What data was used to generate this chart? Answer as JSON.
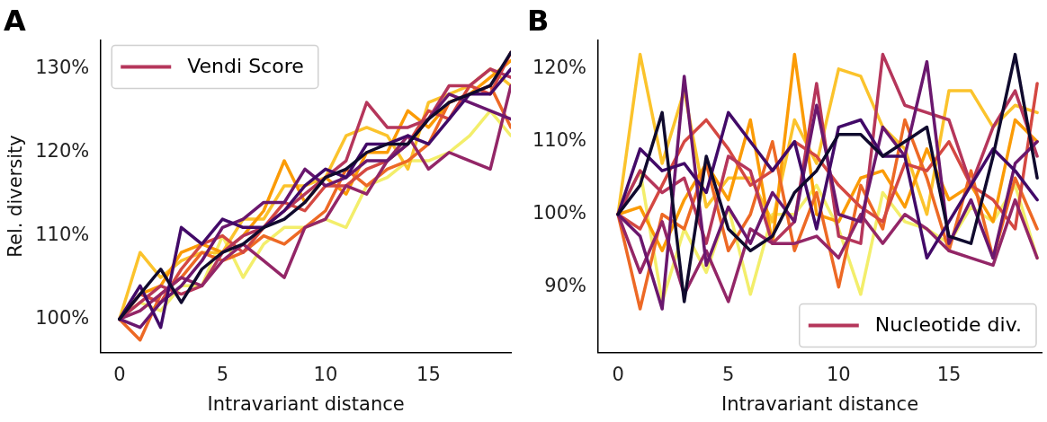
{
  "chart_data": [
    {
      "type": "line",
      "title": "A",
      "xlabel": "Intravariant distance",
      "ylabel": "Rel. diversity",
      "x": [
        0,
        1,
        2,
        3,
        4,
        5,
        6,
        7,
        8,
        9,
        10,
        11,
        12,
        13,
        14,
        15,
        16,
        17,
        18,
        19
      ],
      "xlim": [
        -0.9,
        19
      ],
      "xticks": [
        0,
        5,
        10,
        15
      ],
      "ylim": [
        96,
        133.5
      ],
      "yticks": [
        {
          "value": 100,
          "label": "100%"
        },
        {
          "value": 110,
          "label": "110%"
        },
        {
          "value": 120,
          "label": "120%"
        },
        {
          "value": 130,
          "label": "130%"
        }
      ],
      "grid": false,
      "legend": "top left",
      "marker": "none",
      "line_style": "solid",
      "series": [
        {
          "color": "#100a2e",
          "values": [
            100,
            103,
            106,
            102,
            106,
            108,
            109,
            111,
            112,
            114,
            117,
            118,
            120,
            121,
            121,
            124,
            126,
            127,
            128,
            132
          ]
        },
        {
          "color": "#420a68",
          "values": [
            100,
            104,
            99,
            111,
            109,
            112,
            111,
            111,
            113,
            116,
            118,
            117,
            121,
            121,
            122,
            121,
            124,
            127,
            127,
            130
          ]
        },
        {
          "color": "#6a176e",
          "values": [
            100,
            99,
            102,
            104,
            107,
            111,
            112,
            114,
            114,
            118,
            116,
            117,
            119,
            119,
            121,
            124,
            127,
            126,
            125,
            124
          ]
        },
        {
          "color": "#932667",
          "values": [
            100,
            101,
            103,
            105,
            104,
            107,
            109,
            107,
            105,
            111,
            112,
            116,
            115,
            119,
            122,
            118,
            120,
            119,
            118,
            128
          ]
        },
        {
          "name": "Vendi Score",
          "color": "#b5365b",
          "values": [
            100,
            102,
            104,
            103,
            104,
            108,
            110,
            111,
            113,
            115,
            117,
            119,
            126,
            123,
            123,
            124,
            128,
            128,
            130,
            129
          ]
        },
        {
          "color": "#d44842",
          "values": [
            100,
            103,
            102,
            106,
            109,
            110,
            108,
            111,
            114,
            113,
            116,
            116,
            118,
            119,
            121,
            125,
            124,
            128,
            127,
            132
          ]
        },
        {
          "color": "#ed6925",
          "values": [
            100,
            97.5,
            103,
            105,
            108,
            107,
            108,
            110,
            109,
            111,
            113,
            118,
            116,
            118,
            119,
            121,
            126,
            127,
            128,
            123
          ]
        },
        {
          "color": "#fb9b06",
          "values": [
            100,
            103,
            104,
            108,
            109,
            108,
            110,
            113,
            119,
            114,
            117,
            115,
            120,
            120,
            125,
            123,
            126,
            127,
            129,
            131
          ]
        },
        {
          "color": "#fbc32c",
          "values": [
            100,
            108,
            105,
            107,
            108,
            108,
            112,
            112,
            116,
            116,
            117,
            122,
            123,
            122,
            118,
            126,
            127,
            128,
            130,
            128
          ]
        },
        {
          "color": "#f3ee6b",
          "values": [
            100,
            102,
            101,
            104,
            104,
            110,
            105,
            109,
            111,
            111,
            112,
            111,
            116,
            117,
            119,
            119,
            120,
            122,
            125,
            122
          ]
        }
      ]
    },
    {
      "type": "line",
      "title": "B",
      "xlabel": "Intravariant distance",
      "x": [
        0,
        1,
        2,
        3,
        4,
        5,
        6,
        7,
        8,
        9,
        10,
        11,
        12,
        13,
        14,
        15,
        16,
        17,
        18,
        19
      ],
      "xlim": [
        -0.9,
        19.2
      ],
      "xticks": [
        0,
        5,
        10,
        15
      ],
      "ylim": [
        81,
        124
      ],
      "yticks": [
        {
          "value": 90,
          "label": "90%"
        },
        {
          "value": 100,
          "label": "100%"
        },
        {
          "value": 110,
          "label": "110%"
        },
        {
          "value": 120,
          "label": "120%"
        }
      ],
      "grid": false,
      "legend": "bottom right",
      "marker": "none",
      "line_style": "solid",
      "series": [
        {
          "color": "#100a2e",
          "values": [
            100,
            104,
            114,
            88,
            108,
            98,
            95,
            97,
            103,
            106,
            111,
            111,
            108,
            110,
            112,
            97,
            96,
            108,
            122,
            105
          ]
        },
        {
          "color": "#420a68",
          "values": [
            100,
            109,
            106,
            107,
            103,
            114,
            110,
            106,
            110,
            98,
            112,
            113,
            108,
            108,
            94,
            99,
            104,
            109,
            106,
            102
          ]
        },
        {
          "color": "#6a176e",
          "values": [
            100,
            97,
            87,
            119,
            93,
            101,
            96,
            103,
            99,
            115,
            100,
            99,
            112,
            108,
            121,
            96,
            102,
            94,
            107,
            110
          ]
        },
        {
          "color": "#932667",
          "values": [
            100,
            92,
            99,
            89,
            95,
            88,
            98,
            96,
            96,
            97,
            94,
            100,
            96,
            100,
            98,
            95,
            94,
            93,
            102,
            94
          ]
        },
        {
          "name": "Nucleotide div.",
          "color": "#b5365b",
          "values": [
            100,
            106,
            103,
            105,
            96,
            108,
            106,
            96,
            99,
            118,
            97,
            96,
            122,
            115,
            114,
            113,
            104,
            112,
            117,
            108
          ]
        },
        {
          "color": "#d44842",
          "values": [
            100,
            98,
            104,
            110,
            113,
            109,
            104,
            106,
            110,
            108,
            104,
            101,
            99,
            107,
            106,
            110,
            104,
            102,
            98,
            118
          ]
        },
        {
          "color": "#ed6925",
          "values": [
            100,
            87,
            100,
            98,
            107,
            95,
            100,
            110,
            95,
            103,
            90,
            104,
            98,
            113,
            105,
            95,
            106,
            94,
            105,
            98
          ]
        },
        {
          "color": "#fb9b06",
          "values": [
            100,
            101,
            95,
            102,
            107,
            102,
            113,
            96,
            122,
            100,
            99,
            105,
            106,
            101,
            109,
            102,
            104,
            99,
            113,
            110
          ]
        },
        {
          "color": "#fbc32c",
          "values": [
            100,
            122,
            107,
            117,
            101,
            105,
            105,
            99,
            113,
            107,
            120,
            119,
            112,
            109,
            100,
            117,
            117,
            112,
            115,
            114
          ]
        },
        {
          "color": "#f3ee6b",
          "values": [
            100,
            106,
            88,
            98,
            92,
            101,
            89,
            100,
            100,
            104,
            98,
            89,
            103,
            99,
            98,
            96,
            101,
            99,
            104,
            94
          ]
        }
      ]
    }
  ]
}
